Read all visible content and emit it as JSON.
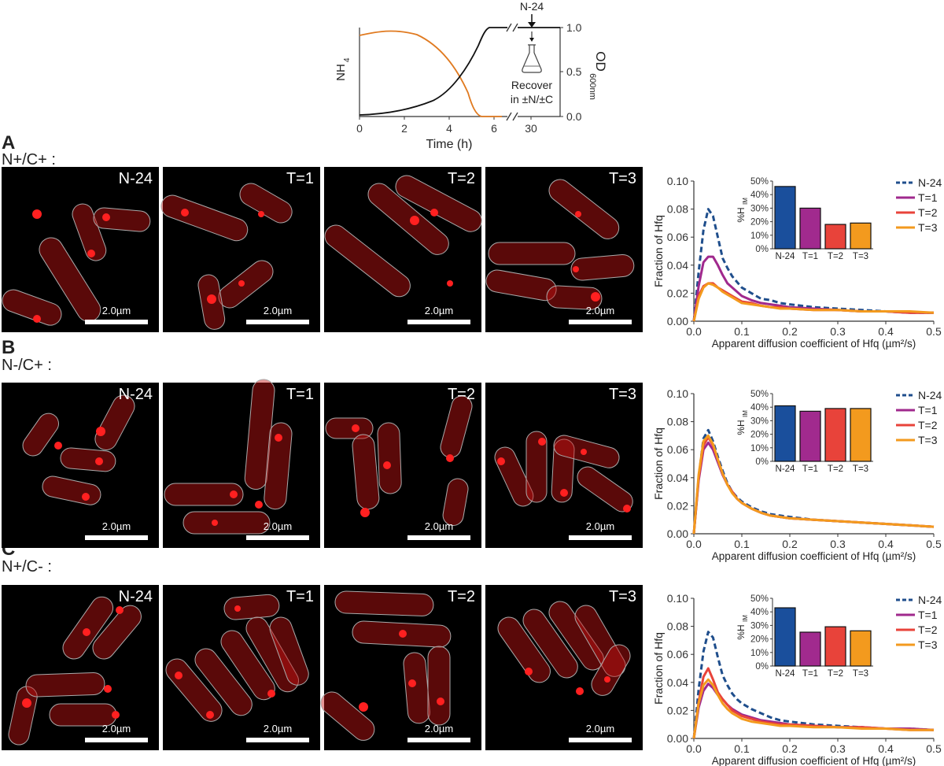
{
  "top_chart": {
    "y_left_label": "NH",
    "y_left_sub": "4",
    "y_right_label": "OD",
    "y_right_sub": "600nm",
    "x_label": "Time (h)",
    "x_ticks": [
      "0",
      "2",
      "4",
      "6",
      "30"
    ],
    "y_right_ticks": [
      "0.0",
      "0.5",
      "1.0"
    ],
    "annotation_top": "N-24",
    "annotation_line1": "Recover",
    "annotation_line2": "in ±N/±C",
    "colors": {
      "nh4": "#e07a20",
      "od": "#111111"
    }
  },
  "panels": [
    {
      "letter": "A",
      "condition": "N+/C+ :",
      "micro": [
        {
          "label": "N-24",
          "scale": "2.0µm"
        },
        {
          "label": "T=1",
          "scale": "2.0µm"
        },
        {
          "label": "T=2",
          "scale": "2.0µm"
        },
        {
          "label": "T=3",
          "scale": "2.0µm"
        }
      ]
    },
    {
      "letter": "B",
      "condition": "N-/C+ :",
      "micro": [
        {
          "label": "N-24",
          "scale": "2.0µm"
        },
        {
          "label": "T=1",
          "scale": "2.0µm"
        },
        {
          "label": "T=2",
          "scale": "2.0µm"
        },
        {
          "label": "T=3",
          "scale": "2.0µm"
        }
      ]
    },
    {
      "letter": "C",
      "condition": "N+/C- :",
      "micro": [
        {
          "label": "N-24",
          "scale": "2.0µm"
        },
        {
          "label": "T=1",
          "scale": "2.0µm"
        },
        {
          "label": "T=2",
          "scale": "2.0µm"
        },
        {
          "label": "T=3",
          "scale": "2.0µm"
        }
      ]
    }
  ],
  "chart_data": [
    {
      "type": "line",
      "panel": "A",
      "xlabel": "Apparent diffusion coefficient of Hfq (µm²/s)",
      "ylabel": "Fraction of Hfq",
      "xlim": [
        0,
        0.5
      ],
      "ylim": [
        0,
        0.1
      ],
      "x_ticks": [
        "0.0",
        "0.1",
        "0.2",
        "0.3",
        "0.4",
        "0.5"
      ],
      "y_ticks": [
        "0.00",
        "0.02",
        "0.04",
        "0.06",
        "0.08",
        "0.10"
      ],
      "legend": "right",
      "x": [
        0,
        0.01,
        0.02,
        0.03,
        0.04,
        0.05,
        0.06,
        0.07,
        0.08,
        0.09,
        0.1,
        0.12,
        0.14,
        0.16,
        0.18,
        0.2,
        0.25,
        0.3,
        0.35,
        0.4,
        0.45,
        0.5
      ],
      "series": [
        {
          "name": "N-24",
          "color": "#1f4e8c",
          "dashed": true,
          "values": [
            0,
            0.035,
            0.065,
            0.08,
            0.075,
            0.06,
            0.045,
            0.038,
            0.032,
            0.028,
            0.024,
            0.02,
            0.016,
            0.015,
            0.013,
            0.012,
            0.01,
            0.009,
            0.008,
            0.007,
            0.006,
            0.006
          ]
        },
        {
          "name": "T=1",
          "color": "#a0298d",
          "values": [
            0,
            0.025,
            0.042,
            0.046,
            0.046,
            0.04,
            0.033,
            0.027,
            0.024,
            0.021,
            0.018,
            0.015,
            0.013,
            0.012,
            0.011,
            0.01,
            0.009,
            0.008,
            0.007,
            0.007,
            0.006,
            0.006
          ]
        },
        {
          "name": "T=2",
          "color": "#e8433a",
          "values": [
            0,
            0.018,
            0.025,
            0.027,
            0.027,
            0.024,
            0.022,
            0.02,
            0.018,
            0.016,
            0.014,
            0.013,
            0.011,
            0.01,
            0.01,
            0.009,
            0.008,
            0.008,
            0.007,
            0.007,
            0.006,
            0.006
          ]
        },
        {
          "name": "T=3",
          "color": "#f39a1e",
          "values": [
            0,
            0.016,
            0.024,
            0.027,
            0.026,
            0.024,
            0.021,
            0.019,
            0.017,
            0.015,
            0.013,
            0.012,
            0.011,
            0.01,
            0.009,
            0.009,
            0.008,
            0.008,
            0.007,
            0.007,
            0.007,
            0.006
          ]
        }
      ],
      "inset": {
        "type": "bar",
        "ylabel": "%H",
        "ylabel_sub": "IM",
        "categories": [
          "N-24",
          "T=1",
          "T=2",
          "T=3"
        ],
        "values": [
          46,
          30,
          18,
          19
        ],
        "colors": [
          "#1a4f9c",
          "#a12a8e",
          "#e8433a",
          "#f39a1e"
        ],
        "ylim": [
          0,
          50
        ],
        "y_ticks": [
          "0%",
          "10%",
          "20%",
          "30%",
          "40%",
          "50%"
        ]
      }
    },
    {
      "type": "line",
      "panel": "B",
      "xlabel": "Apparent diffusion coefficient of Hfq (µm²/s)",
      "ylabel": "Fraction of Hfq",
      "xlim": [
        0,
        0.5
      ],
      "ylim": [
        0,
        0.1
      ],
      "x_ticks": [
        "0.0",
        "0.1",
        "0.2",
        "0.3",
        "0.4",
        "0.5"
      ],
      "y_ticks": [
        "0.00",
        "0.02",
        "0.04",
        "0.06",
        "0.08",
        "0.10"
      ],
      "legend": "right",
      "x": [
        0,
        0.01,
        0.02,
        0.03,
        0.04,
        0.05,
        0.06,
        0.07,
        0.08,
        0.09,
        0.1,
        0.12,
        0.14,
        0.16,
        0.18,
        0.2,
        0.25,
        0.3,
        0.35,
        0.4,
        0.45,
        0.5
      ],
      "series": [
        {
          "name": "N-24",
          "color": "#1f4e8c",
          "dashed": true,
          "values": [
            0,
            0.04,
            0.068,
            0.074,
            0.066,
            0.055,
            0.045,
            0.036,
            0.03,
            0.026,
            0.023,
            0.019,
            0.016,
            0.014,
            0.013,
            0.012,
            0.01,
            0.009,
            0.008,
            0.007,
            0.006,
            0.005
          ]
        },
        {
          "name": "T=1",
          "color": "#a0298d",
          "values": [
            0,
            0.038,
            0.06,
            0.065,
            0.06,
            0.051,
            0.042,
            0.035,
            0.03,
            0.025,
            0.022,
            0.018,
            0.015,
            0.013,
            0.012,
            0.011,
            0.01,
            0.009,
            0.008,
            0.007,
            0.006,
            0.005
          ]
        },
        {
          "name": "T=2",
          "color": "#e8433a",
          "values": [
            0,
            0.04,
            0.063,
            0.069,
            0.063,
            0.053,
            0.043,
            0.035,
            0.03,
            0.025,
            0.022,
            0.018,
            0.015,
            0.013,
            0.012,
            0.011,
            0.01,
            0.009,
            0.008,
            0.007,
            0.006,
            0.005
          ]
        },
        {
          "name": "T=3",
          "color": "#f39a1e",
          "values": [
            0,
            0.042,
            0.066,
            0.07,
            0.064,
            0.053,
            0.043,
            0.035,
            0.029,
            0.025,
            0.022,
            0.018,
            0.015,
            0.013,
            0.012,
            0.011,
            0.01,
            0.009,
            0.008,
            0.007,
            0.006,
            0.005
          ]
        }
      ],
      "inset": {
        "type": "bar",
        "ylabel": "%H",
        "ylabel_sub": "IM",
        "categories": [
          "N-24",
          "T=1",
          "T=2",
          "T=3"
        ],
        "values": [
          41,
          37,
          39,
          39
        ],
        "colors": [
          "#1a4f9c",
          "#a12a8e",
          "#e8433a",
          "#f39a1e"
        ],
        "ylim": [
          0,
          50
        ],
        "y_ticks": [
          "0%",
          "10%",
          "20%",
          "30%",
          "40%",
          "50%"
        ]
      }
    },
    {
      "type": "line",
      "panel": "C",
      "xlabel": "Apparent diffusion coefficient of Hfq (µm²/s)",
      "ylabel": "Fraction of Hfq",
      "xlim": [
        0,
        0.5
      ],
      "ylim": [
        0,
        0.1
      ],
      "x_ticks": [
        "0.0",
        "0.1",
        "0.2",
        "0.3",
        "0.4",
        "0.5"
      ],
      "y_ticks": [
        "0.00",
        "0.02",
        "0.04",
        "0.06",
        "0.08",
        "0.10"
      ],
      "legend": "right",
      "x": [
        0,
        0.01,
        0.02,
        0.03,
        0.04,
        0.05,
        0.06,
        0.07,
        0.08,
        0.09,
        0.1,
        0.12,
        0.14,
        0.16,
        0.18,
        0.2,
        0.25,
        0.3,
        0.35,
        0.4,
        0.45,
        0.5
      ],
      "series": [
        {
          "name": "N-24",
          "color": "#1f4e8c",
          "dashed": true,
          "values": [
            0,
            0.035,
            0.062,
            0.076,
            0.072,
            0.058,
            0.045,
            0.038,
            0.032,
            0.028,
            0.025,
            0.021,
            0.018,
            0.015,
            0.013,
            0.012,
            0.01,
            0.009,
            0.008,
            0.007,
            0.007,
            0.006
          ]
        },
        {
          "name": "T=1",
          "color": "#a0298d",
          "values": [
            0,
            0.022,
            0.034,
            0.039,
            0.036,
            0.031,
            0.028,
            0.024,
            0.021,
            0.019,
            0.017,
            0.015,
            0.013,
            0.012,
            0.011,
            0.01,
            0.009,
            0.008,
            0.008,
            0.007,
            0.007,
            0.006
          ]
        },
        {
          "name": "T=2",
          "color": "#e8433a",
          "values": [
            0,
            0.026,
            0.044,
            0.05,
            0.042,
            0.033,
            0.028,
            0.024,
            0.02,
            0.018,
            0.016,
            0.014,
            0.012,
            0.011,
            0.01,
            0.01,
            0.009,
            0.008,
            0.008,
            0.007,
            0.006,
            0.006
          ]
        },
        {
          "name": "T=3",
          "color": "#f39a1e",
          "values": [
            0,
            0.025,
            0.038,
            0.042,
            0.038,
            0.031,
            0.025,
            0.021,
            0.018,
            0.016,
            0.014,
            0.012,
            0.011,
            0.01,
            0.009,
            0.009,
            0.008,
            0.008,
            0.007,
            0.007,
            0.006,
            0.006
          ]
        }
      ],
      "inset": {
        "type": "bar",
        "ylabel": "%H",
        "ylabel_sub": "IM",
        "categories": [
          "N-24",
          "T=1",
          "T=2",
          "T=3"
        ],
        "values": [
          43,
          25,
          29,
          26
        ],
        "colors": [
          "#1a4f9c",
          "#a12a8e",
          "#e8433a",
          "#f39a1e"
        ],
        "ylim": [
          0,
          50
        ],
        "y_ticks": [
          "0%",
          "10%",
          "20%",
          "30%",
          "40%",
          "50%"
        ]
      }
    }
  ]
}
